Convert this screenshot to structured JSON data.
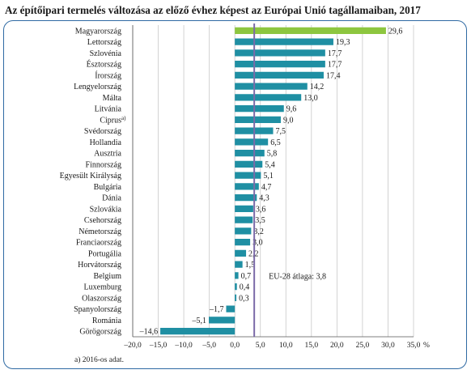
{
  "page": {
    "title": "Az építőipari termelés változása az előző évhez képest az Európai Unió tagállamaiban, 2017",
    "footnote": "a) 2016-os adat.",
    "footnote_marker": "a)"
  },
  "chart_data": {
    "type": "bar",
    "orientation": "horizontal",
    "title": "Az építőipari termelés változása az előző évhez képest az Európai Unió tagállamaiban, 2017",
    "categories": [
      "Magyarország",
      "Lettország",
      "Szlovénia",
      "Észtország",
      "Írország",
      "Lengyelország",
      "Málta",
      "Litvánia",
      "Ciprus",
      "Svédország",
      "Hollandia",
      "Ausztria",
      "Finnország",
      "Egyesült Királyság",
      "Bulgária",
      "Dánia",
      "Szlovákia",
      "Csehország",
      "Németország",
      "Franciaország",
      "Portugália",
      "Horvátország",
      "Belgium",
      "Luxemburg",
      "Olaszország",
      "Spanyolország",
      "Románia",
      "Görögország"
    ],
    "values": [
      29.6,
      19.3,
      17.7,
      17.7,
      17.4,
      14.2,
      13.0,
      9.6,
      9.0,
      7.5,
      6.5,
      5.8,
      5.4,
      5.1,
      4.7,
      4.3,
      3.6,
      3.5,
      3.2,
      3.0,
      2.2,
      1.5,
      0.7,
      0.4,
      0.3,
      -1.7,
      -5.1,
      -14.6
    ],
    "value_labels": [
      "29,6",
      "19,3",
      "17,7",
      "17,7",
      "17,4",
      "14,2",
      "13,0",
      "9,6",
      "9,0",
      "7,5",
      "6,5",
      "5,8",
      "5,4",
      "5,1",
      "4,7",
      "4,3",
      "3,6",
      "3,5",
      "3,2",
      "3,0",
      "2,2",
      "1,5",
      "0,7",
      "0,4",
      "0,3",
      "–1,7",
      "–5,1",
      "–14,6"
    ],
    "highlight_category": "Magyarország",
    "xlim": [
      -20,
      35
    ],
    "x_ticks": [
      -20,
      -15,
      -10,
      -5,
      0,
      5,
      10,
      15,
      20,
      25,
      30,
      35
    ],
    "x_tick_labels": [
      "–20,0",
      "–15,0",
      "–10,0",
      "–5,0",
      "0,0",
      "5,0",
      "10,0",
      "15,0",
      "20,0",
      "25,0",
      "30,0",
      "35,0"
    ],
    "x_unit": "%",
    "reference_line": {
      "value": 3.8,
      "label": "EU-28 átlaga: 3,8"
    },
    "grid": "vertical",
    "colors": {
      "bar": "#1f8fa3",
      "highlight": "#8dc63f",
      "reference": "#7b6aa8",
      "grid": "#c8c8c8",
      "frame": "#2f6aa3"
    }
  }
}
